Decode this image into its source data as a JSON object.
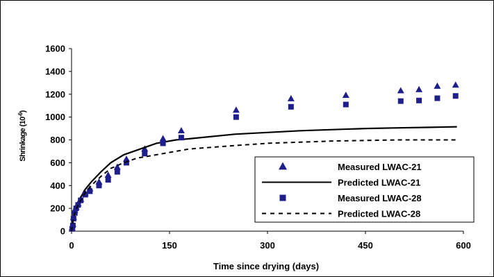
{
  "chart_data": {
    "type": "scatter",
    "xlabel": "Time since drying (days)",
    "ylabel": "Shrinkage (10",
    "ylabel_sup": "-6",
    "ylabel_close": ")",
    "xlim": [
      0,
      600
    ],
    "ylim": [
      0,
      1600
    ],
    "xticks": [
      0,
      150,
      300,
      450,
      600
    ],
    "yticks": [
      0,
      200,
      400,
      600,
      800,
      1000,
      1200,
      1400,
      1600
    ],
    "grid": false,
    "legend_position": "bottom-right",
    "series": [
      {
        "name": "Measured LWAC-21",
        "kind": "markers",
        "marker": "triangle",
        "color": "#1f1f8c",
        "x": [
          1,
          2,
          3,
          5,
          7,
          10,
          14,
          21,
          28,
          42,
          56,
          70,
          84,
          112,
          140,
          168,
          252,
          336,
          420,
          504,
          532,
          560,
          588
        ],
        "y": [
          30,
          60,
          120,
          180,
          210,
          240,
          280,
          330,
          370,
          430,
          490,
          560,
          630,
          720,
          810,
          880,
          1060,
          1160,
          1190,
          1230,
          1240,
          1270,
          1280
        ]
      },
      {
        "name": "Predicted LWAC-21",
        "kind": "line",
        "dash": "solid",
        "color": "#000000",
        "x": [
          0,
          2,
          5,
          10,
          20,
          30,
          45,
          60,
          80,
          100,
          130,
          160,
          180,
          250,
          300,
          350,
          400,
          450,
          500,
          550,
          590
        ],
        "y": [
          0,
          90,
          170,
          250,
          360,
          430,
          520,
          600,
          670,
          710,
          770,
          800,
          810,
          850,
          865,
          880,
          890,
          900,
          905,
          910,
          915
        ]
      },
      {
        "name": "Measured LWAC-28",
        "kind": "markers",
        "marker": "square",
        "color": "#1f1f8c",
        "x": [
          1,
          2,
          3,
          5,
          7,
          10,
          14,
          21,
          28,
          42,
          56,
          70,
          84,
          112,
          140,
          168,
          252,
          336,
          420,
          504,
          532,
          560,
          588
        ],
        "y": [
          20,
          50,
          110,
          160,
          200,
          230,
          270,
          320,
          350,
          400,
          450,
          520,
          600,
          680,
          770,
          820,
          1000,
          1090,
          1110,
          1140,
          1145,
          1165,
          1185
        ]
      },
      {
        "name": "Predicted LWAC-28",
        "kind": "line",
        "dash": "dashed",
        "color": "#000000",
        "x": [
          0,
          2,
          5,
          10,
          20,
          30,
          45,
          60,
          80,
          100,
          130,
          160,
          180,
          250,
          300,
          350,
          400,
          450,
          500,
          550,
          590
        ],
        "y": [
          0,
          85,
          160,
          230,
          330,
          400,
          480,
          550,
          600,
          640,
          670,
          700,
          720,
          750,
          770,
          780,
          790,
          795,
          800,
          800,
          800
        ]
      }
    ]
  }
}
